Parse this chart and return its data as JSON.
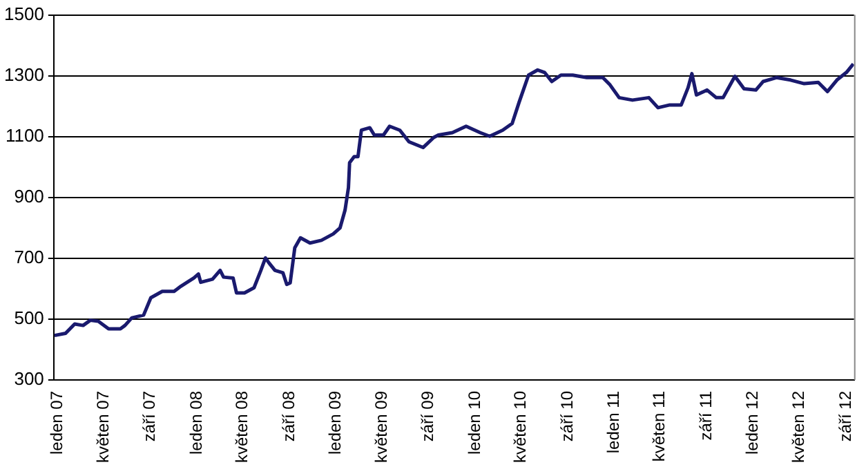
{
  "chart_data": {
    "type": "line",
    "x": [
      "2007-01-03",
      "2007-02-01",
      "2007-02-25",
      "2007-03-19",
      "2007-04-07",
      "2007-04-28",
      "2007-05-25",
      "2007-06-25",
      "2007-07-07",
      "2007-07-25",
      "2007-08-25",
      "2007-09-13",
      "2007-10-13",
      "2007-11-13",
      "2007-12-01",
      "2008-01-04",
      "2008-01-16",
      "2008-01-22",
      "2008-02-22",
      "2008-03-13",
      "2008-03-22",
      "2008-04-16",
      "2008-04-25",
      "2008-05-16",
      "2008-06-10",
      "2008-06-28",
      "2008-07-10",
      "2008-07-19",
      "2008-08-04",
      "2008-08-25",
      "2008-09-04",
      "2008-09-13",
      "2008-09-25",
      "2008-10-10",
      "2008-11-04",
      "2008-12-04",
      "2009-01-04",
      "2009-01-22",
      "2009-02-04",
      "2009-02-13",
      "2009-02-16",
      "2009-02-28",
      "2009-03-10",
      "2009-03-19",
      "2009-04-10",
      "2009-04-22",
      "2009-05-16",
      "2009-06-01",
      "2009-06-28",
      "2009-07-22",
      "2009-08-28",
      "2009-09-25",
      "2009-10-07",
      "2009-11-13",
      "2009-12-19",
      "2010-01-25",
      "2010-02-19",
      "2010-03-25",
      "2010-04-19",
      "2010-05-07",
      "2010-06-01",
      "2010-06-25",
      "2010-07-13",
      "2010-08-01",
      "2010-08-25",
      "2010-09-25",
      "2010-11-01",
      "2010-12-13",
      "2011-01-01",
      "2011-01-25",
      "2011-03-01",
      "2011-04-13",
      "2011-05-07",
      "2011-06-07",
      "2011-07-07",
      "2011-07-25",
      "2011-08-04",
      "2011-08-16",
      "2011-09-13",
      "2011-10-07",
      "2011-10-25",
      "2011-11-25",
      "2011-12-19",
      "2012-01-19",
      "2012-02-07",
      "2012-03-13",
      "2012-04-19",
      "2012-05-25",
      "2012-07-01",
      "2012-07-25",
      "2012-08-19",
      "2012-09-13",
      "2012-10-01"
    ],
    "series": [
      {
        "color": "#1a1a6e",
        "values": [
          446,
          453,
          484,
          479,
          496,
          493,
          468,
          468,
          479,
          504,
          513,
          570,
          591,
          591,
          608,
          635,
          648,
          621,
          631,
          660,
          638,
          635,
          586,
          586,
          603,
          660,
          701,
          685,
          660,
          652,
          614,
          619,
          734,
          767,
          750,
          759,
          780,
          800,
          858,
          932,
          1014,
          1034,
          1034,
          1121,
          1129,
          1105,
          1105,
          1134,
          1121,
          1083,
          1064,
          1097,
          1105,
          1113,
          1134,
          1113,
          1101,
          1121,
          1143,
          1212,
          1302,
          1319,
          1311,
          1281,
          1302,
          1302,
          1294,
          1294,
          1270,
          1228,
          1220,
          1228,
          1195,
          1204,
          1204,
          1261,
          1307,
          1237,
          1253,
          1228,
          1228,
          1298,
          1257,
          1253,
          1281,
          1294,
          1286,
          1274,
          1278,
          1248,
          1286,
          1311,
          1339
        ]
      }
    ],
    "xlim": [
      "2007-01-01",
      "2012-10-03"
    ],
    "xticks": [
      {
        "value": "2007-01-01",
        "label": "leden 07"
      },
      {
        "value": "2007-05-01",
        "label": "květen 07"
      },
      {
        "value": "2007-09-01",
        "label": "září 07"
      },
      {
        "value": "2008-01-01",
        "label": "leden 08"
      },
      {
        "value": "2008-05-01",
        "label": "květen 08"
      },
      {
        "value": "2008-09-01",
        "label": "září 08"
      },
      {
        "value": "2009-01-01",
        "label": "leden 09"
      },
      {
        "value": "2009-05-01",
        "label": "květen 09"
      },
      {
        "value": "2009-09-01",
        "label": "září 09"
      },
      {
        "value": "2010-01-01",
        "label": "leden 10"
      },
      {
        "value": "2010-05-01",
        "label": "květen 10"
      },
      {
        "value": "2010-09-01",
        "label": "září 10"
      },
      {
        "value": "2011-01-01",
        "label": "leden 11"
      },
      {
        "value": "2011-05-01",
        "label": "květen 11"
      },
      {
        "value": "2011-09-01",
        "label": "září 11"
      },
      {
        "value": "2012-01-01",
        "label": "leden 12"
      },
      {
        "value": "2012-05-01",
        "label": "květen 12"
      },
      {
        "value": "2012-09-01",
        "label": "září 12"
      }
    ],
    "ylim": [
      300,
      1500
    ],
    "yticks": [
      300,
      500,
      700,
      900,
      1100,
      1300,
      1500
    ],
    "grid": "y",
    "legend": false,
    "marker": "none",
    "line_style": "solid"
  }
}
